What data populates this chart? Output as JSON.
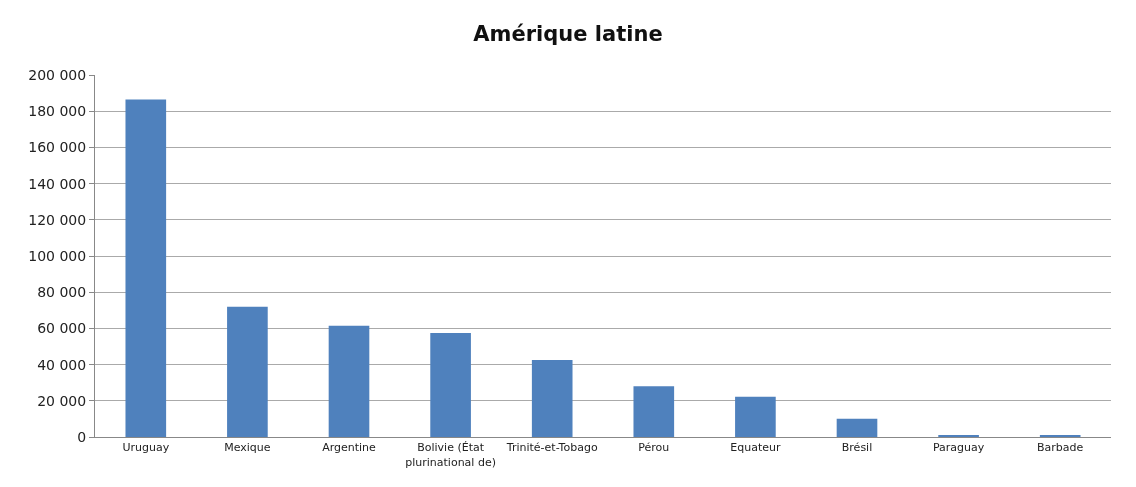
{
  "chart_data": {
    "type": "bar",
    "title": "Amérique latine",
    "categories": [
      "Uruguay",
      "Mexique",
      "Argentine",
      "Bolivie (État\nplurinational de)",
      "Trinité-et-Tobago",
      "Pérou",
      "Equateur",
      "Brésil",
      "Paraguay",
      "Barbade"
    ],
    "values": [
      186500,
      72000,
      61500,
      57400,
      42500,
      28000,
      22300,
      10100,
      1000,
      600
    ],
    "color": "#4f81bd",
    "ylim": [
      0,
      200000
    ],
    "yticks": [
      {
        "value": 0,
        "label": "0"
      },
      {
        "value": 20000,
        "label": "20 000"
      },
      {
        "value": 40000,
        "label": "40 000"
      },
      {
        "value": 60000,
        "label": "60 000"
      },
      {
        "value": 80000,
        "label": "80 000"
      },
      {
        "value": 100000,
        "label": "100 000"
      },
      {
        "value": 120000,
        "label": "120 000"
      },
      {
        "value": 140000,
        "label": "140 000"
      },
      {
        "value": 160000,
        "label": "160 000"
      },
      {
        "value": 180000,
        "label": "180 000"
      },
      {
        "value": 200000,
        "label": "200 000"
      }
    ],
    "grid": "y"
  }
}
